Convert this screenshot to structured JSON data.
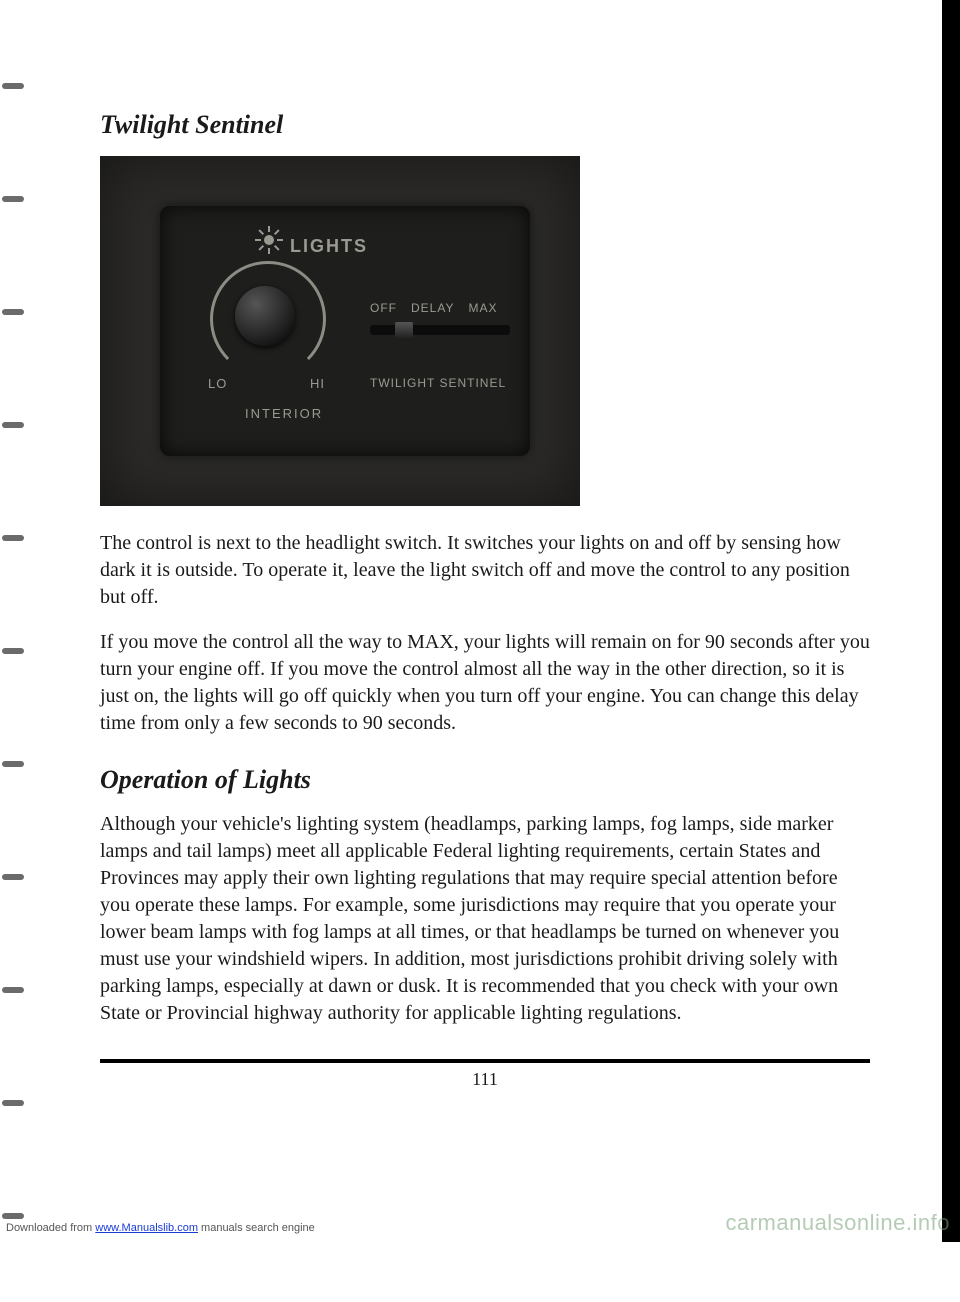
{
  "heading1": "Twilight Sentinel",
  "heading2": "Operation of Lights",
  "panel": {
    "lights": "LIGHTS",
    "lo": "LO",
    "hi": "HI",
    "interior": "INTERIOR",
    "off": "OFF",
    "delay": "DELAY",
    "max": "MAX",
    "twilight": "TWILIGHT SENTINEL"
  },
  "para1": "The control is next to the headlight switch. It switches your lights on and off by sensing how dark it is outside. To operate it, leave the light switch off and move the control to any position but off.",
  "para2": "If you move the control all the way to MAX, your lights will remain on for 90 seconds after you turn your engine off. If you move the control almost all the way in the other direction, so it is just on, the lights will go off quickly when you turn off your engine. You can change this delay time from only a few seconds to 90 seconds.",
  "para3": "Although your vehicle's lighting system (headlamps, parking lamps, fog lamps, side marker lamps and tail lamps) meet all applicable Federal lighting requirements, certain States and Provinces may apply their own lighting regulations that may require special attention before you operate these lamps. For example, some jurisdictions may require that you operate your lower beam lamps with fog lamps at all times, or that headlamps be turned on whenever you must use your windshield wipers. In addition, most jurisdictions prohibit driving solely with parking lamps, especially at dawn or dusk. It is recommended that you check with your own State or Provincial highway authority for applicable lighting regulations.",
  "pagenum": "111",
  "footer_prefix": "Downloaded from ",
  "footer_link": "www.Manualslib.com",
  "footer_suffix": " manuals search engine",
  "watermark": "carmanualsonline.info",
  "colors": {
    "text": "#1a1a1a",
    "panel_bg": "#1e1e1c",
    "panel_text": "#9a9a92",
    "photo_bg": "#2b2a28",
    "rule": "#000000"
  },
  "typography": {
    "heading_fontsize": 26,
    "body_fontsize": 20,
    "body_lineheight": 1.35
  }
}
